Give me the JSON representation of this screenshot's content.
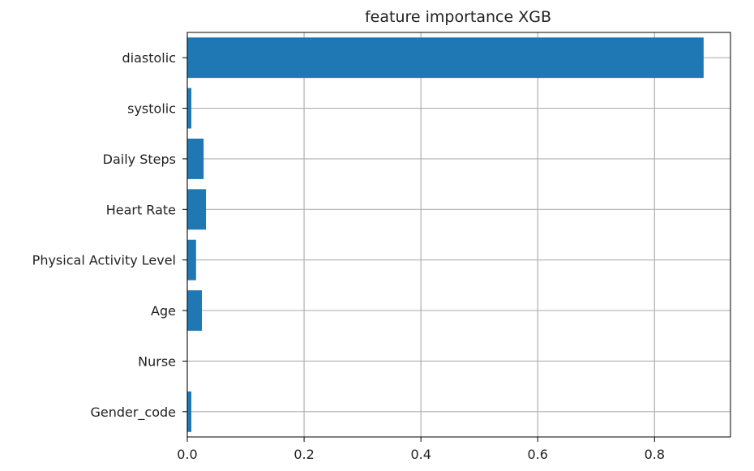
{
  "chart_data": {
    "type": "bar",
    "orientation": "horizontal",
    "title": "feature importance XGB",
    "xlabel": "",
    "ylabel": "",
    "categories": [
      "diastolic",
      "systolic",
      "Daily Steps",
      "Heart Rate",
      "Physical Activity Level",
      "Age",
      "Nurse",
      "Gender_code"
    ],
    "values": [
      0.884,
      0.007,
      0.028,
      0.032,
      0.015,
      0.025,
      0.0,
      0.007
    ],
    "xlim": [
      0.0,
      0.93
    ],
    "xticks": [
      0.0,
      0.2,
      0.4,
      0.6,
      0.8
    ],
    "xtick_labels": [
      "0.0",
      "0.2",
      "0.4",
      "0.6",
      "0.8"
    ],
    "grid": true,
    "legend": "none",
    "bar_color": "#1f77b4",
    "grid_color": "#b0b0b0",
    "axis_color": "#000000"
  }
}
